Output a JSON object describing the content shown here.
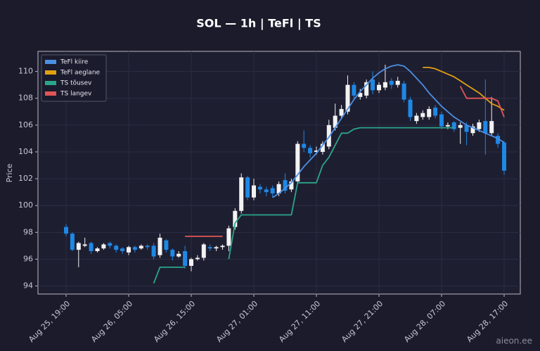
{
  "chart_data": {
    "type": "candlestick",
    "title": "SOL — 1h  |  TeFl  |  TS",
    "y_label": "Price",
    "watermark": "aieon.ee",
    "ylim": [
      93.4,
      111.5
    ],
    "yticks": [
      94,
      96,
      98,
      100,
      102,
      104,
      106,
      108,
      110
    ],
    "grid": true,
    "legend": "upper left",
    "up_color": "#f2f2f2",
    "down_color": "#1e88e5",
    "categories": [
      "Aug 25, 19:00",
      null,
      null,
      null,
      null,
      null,
      null,
      null,
      null,
      null,
      "Aug 26, 05:00",
      null,
      null,
      null,
      null,
      null,
      null,
      null,
      null,
      null,
      "Aug 26, 15:00",
      null,
      null,
      null,
      null,
      null,
      null,
      null,
      null,
      null,
      "Aug 27, 01:00",
      null,
      null,
      null,
      null,
      null,
      null,
      null,
      null,
      null,
      "Aug 27, 11:00",
      null,
      null,
      null,
      null,
      null,
      null,
      null,
      null,
      null,
      "Aug 27, 21:00",
      null,
      null,
      null,
      null,
      null,
      null,
      null,
      null,
      null,
      "Aug 28, 07:00",
      null,
      null,
      null,
      null,
      null,
      null,
      null,
      null,
      null,
      "Aug 28, 17:00"
    ],
    "open": [
      98.4,
      97.9,
      96.7,
      97.0,
      97.2,
      96.6,
      96.8,
      97.2,
      97.0,
      96.8,
      96.5,
      96.9,
      96.8,
      97.0,
      97.0,
      96.3,
      97.4,
      96.7,
      96.2,
      96.6,
      95.5,
      96.0,
      96.1,
      96.9,
      96.8,
      96.9,
      97.0,
      98.4,
      99.6,
      102.1,
      100.6,
      101.4,
      101.2,
      101.3,
      100.9,
      101.9,
      101.2,
      101.8,
      104.6,
      104.3,
      104.0,
      104.0,
      104.4,
      105.8,
      106.7,
      107.0,
      109.0,
      108.1,
      108.2,
      109.4,
      108.6,
      108.8,
      109.3,
      109.0,
      109.1,
      107.9,
      106.3,
      106.6,
      106.6,
      107.3,
      106.8,
      105.9,
      106.2,
      105.8,
      106.0,
      105.4,
      105.7,
      106.3,
      105.4,
      105.2,
      104.7
    ],
    "high": [
      98.6,
      98.0,
      97.3,
      97.6,
      97.3,
      96.9,
      97.2,
      97.3,
      97.1,
      96.9,
      97.0,
      97.0,
      97.1,
      97.1,
      97.2,
      97.9,
      97.5,
      96.8,
      96.6,
      97.0,
      96.1,
      96.3,
      97.2,
      97.1,
      97.0,
      97.1,
      98.5,
      99.8,
      102.4,
      102.2,
      102.0,
      101.6,
      101.4,
      101.5,
      101.8,
      102.4,
      102.0,
      104.8,
      105.6,
      104.5,
      104.4,
      104.8,
      106.4,
      107.6,
      107.5,
      109.7,
      109.2,
      108.7,
      109.4,
      110.0,
      109.2,
      110.5,
      109.5,
      109.6,
      109.3,
      108.1,
      106.9,
      107.1,
      107.4,
      107.5,
      107.0,
      106.2,
      106.3,
      106.2,
      106.2,
      106.1,
      106.4,
      109.4,
      108.1,
      105.4,
      104.8
    ],
    "low": [
      97.7,
      96.6,
      95.4,
      96.9,
      96.4,
      96.5,
      96.7,
      96.8,
      96.5,
      96.4,
      96.3,
      96.5,
      96.7,
      96.7,
      96.0,
      96.1,
      96.5,
      95.9,
      96.1,
      95.3,
      95.1,
      95.9,
      95.9,
      96.6,
      96.6,
      96.7,
      96.6,
      98.2,
      99.4,
      100.4,
      100.4,
      100.9,
      100.7,
      100.6,
      100.7,
      100.9,
      101.0,
      101.6,
      104.0,
      103.6,
      103.8,
      103.8,
      104.2,
      105.6,
      106.5,
      106.8,
      108.0,
      107.9,
      108.0,
      108.3,
      108.4,
      108.6,
      108.7,
      108.8,
      107.7,
      106.3,
      106.1,
      106.4,
      106.4,
      106.5,
      105.7,
      105.7,
      105.5,
      104.6,
      104.5,
      105.2,
      105.5,
      103.8,
      105.2,
      104.3,
      102.3
    ],
    "close": [
      97.9,
      96.7,
      97.2,
      97.1,
      96.6,
      96.8,
      97.1,
      97.0,
      96.7,
      96.6,
      96.9,
      96.7,
      97.0,
      96.9,
      96.2,
      97.6,
      96.7,
      96.2,
      96.4,
      95.5,
      96.0,
      96.1,
      97.1,
      96.8,
      96.9,
      97.0,
      98.3,
      99.6,
      102.1,
      100.6,
      101.5,
      101.2,
      101.0,
      100.9,
      101.6,
      101.1,
      101.8,
      104.6,
      104.3,
      103.9,
      104.1,
      104.6,
      106.0,
      106.7,
      107.2,
      109.0,
      108.2,
      108.4,
      109.2,
      108.6,
      109.0,
      109.2,
      109.0,
      109.3,
      107.9,
      106.6,
      106.7,
      106.9,
      107.2,
      106.7,
      105.9,
      106.0,
      105.7,
      106.0,
      105.5,
      105.9,
      106.2,
      105.4,
      106.3,
      104.6,
      102.6
    ],
    "series": [
      {
        "name": "TeFl kiire",
        "color": "#4a90e2",
        "values": [
          null,
          null,
          null,
          null,
          null,
          null,
          null,
          null,
          null,
          null,
          null,
          null,
          null,
          null,
          null,
          null,
          null,
          null,
          null,
          null,
          null,
          null,
          null,
          null,
          null,
          null,
          null,
          null,
          null,
          null,
          null,
          null,
          null,
          100.6,
          100.9,
          101.3,
          101.7,
          102.3,
          102.9,
          103.4,
          103.9,
          104.5,
          105.1,
          105.8,
          106.5,
          107.2,
          107.9,
          108.5,
          109.0,
          109.5,
          109.9,
          110.2,
          110.4,
          110.5,
          110.4,
          110.0,
          109.5,
          109.0,
          108.4,
          107.9,
          107.4,
          107.0,
          106.6,
          106.3,
          106.0,
          105.8,
          105.6,
          105.4,
          105.2,
          105.0,
          104.7
        ]
      },
      {
        "name": "TeFl aeglane",
        "color": "#e0a010",
        "values": [
          null,
          null,
          null,
          null,
          null,
          null,
          null,
          null,
          null,
          null,
          null,
          null,
          null,
          null,
          null,
          null,
          null,
          null,
          null,
          null,
          null,
          null,
          null,
          null,
          null,
          null,
          null,
          null,
          null,
          null,
          null,
          null,
          null,
          null,
          null,
          null,
          null,
          null,
          null,
          null,
          null,
          null,
          null,
          null,
          null,
          null,
          null,
          null,
          null,
          null,
          null,
          null,
          null,
          null,
          null,
          null,
          null,
          110.3,
          110.3,
          110.2,
          110.0,
          109.8,
          109.6,
          109.3,
          109.0,
          108.7,
          108.4,
          108.0,
          107.6,
          107.4,
          107.1
        ]
      },
      {
        "name": "TS tõusev",
        "color": "#2ba58a",
        "values": [
          null,
          null,
          null,
          null,
          null,
          null,
          null,
          null,
          null,
          null,
          null,
          null,
          null,
          null,
          94.2,
          95.4,
          95.4,
          95.4,
          95.4,
          95.4,
          null,
          null,
          null,
          null,
          null,
          null,
          96.0,
          98.7,
          99.3,
          99.3,
          99.3,
          99.3,
          99.3,
          99.3,
          99.3,
          99.3,
          99.3,
          101.7,
          101.7,
          101.7,
          101.7,
          103.0,
          103.6,
          104.5,
          105.4,
          105.4,
          105.7,
          105.8,
          105.8,
          105.8,
          105.8,
          105.8,
          105.8,
          105.8,
          105.8,
          105.8,
          105.8,
          105.8,
          105.8,
          105.8,
          105.8,
          105.8,
          105.8,
          null,
          null,
          null,
          null,
          null,
          null,
          null,
          null
        ]
      },
      {
        "name": "TS langev",
        "color": "#e05555",
        "values": [
          null,
          null,
          null,
          null,
          null,
          null,
          null,
          null,
          null,
          null,
          null,
          null,
          null,
          null,
          null,
          null,
          null,
          null,
          null,
          97.7,
          97.7,
          97.7,
          97.7,
          97.7,
          97.7,
          97.7,
          null,
          null,
          null,
          null,
          null,
          null,
          null,
          null,
          null,
          null,
          null,
          null,
          null,
          null,
          null,
          null,
          null,
          null,
          null,
          null,
          null,
          null,
          null,
          null,
          null,
          null,
          null,
          null,
          null,
          null,
          null,
          null,
          null,
          null,
          null,
          null,
          null,
          108.9,
          108.0,
          108.0,
          108.0,
          108.0,
          108.0,
          107.8,
          106.6
        ]
      }
    ]
  }
}
